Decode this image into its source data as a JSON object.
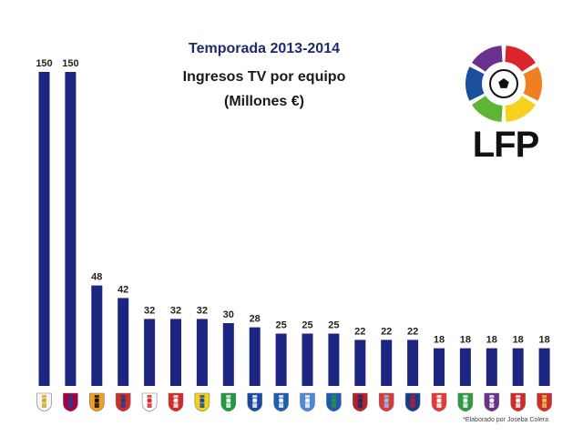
{
  "title": "Temporada 2013-2014",
  "subtitle_line1": "Ingresos TV por equipo",
  "subtitle_line2": "(Millones €)",
  "logo_text": "LFP",
  "credit": "*Elaborado por Joseba Colera",
  "colors": {
    "bar": "#1c2580",
    "title": "#1f2a6b",
    "logo_segments": [
      "#d9262b",
      "#f07f22",
      "#f6d21e",
      "#5db535",
      "#1a4f9c",
      "#6a2f8f"
    ]
  },
  "chart_data": {
    "type": "bar",
    "categories": [
      "",
      "",
      "",
      "",
      "",
      "",
      "",
      "",
      "",
      "",
      "",
      "",
      "",
      "",
      "",
      "",
      "",
      "",
      "",
      ""
    ],
    "values": [
      150,
      150,
      48,
      42,
      32,
      32,
      32,
      30,
      28,
      25,
      25,
      25,
      22,
      22,
      22,
      18,
      18,
      18,
      18,
      18
    ],
    "value_labels": [
      "150",
      "150",
      "48",
      "42",
      "32",
      "32",
      "32",
      "30",
      "28",
      "25",
      "25",
      "25",
      "22",
      "22",
      "22",
      "18",
      "18",
      "18",
      "18",
      "18"
    ],
    "title": "Temporada 2013-2014",
    "xlabel": "",
    "ylabel": "",
    "ylim": [
      0,
      150
    ],
    "grid": false,
    "legend": "none",
    "category_icons": [
      {
        "name": "real-madrid-crest-icon",
        "c1": "#f5f5f5",
        "c2": "#d4a72c"
      },
      {
        "name": "barcelona-crest-icon",
        "c1": "#a50044",
        "c2": "#1d3f8f"
      },
      {
        "name": "valencia-crest-icon",
        "c1": "#f0a020",
        "c2": "#111111"
      },
      {
        "name": "atletico-crest-icon",
        "c1": "#cf2e2e",
        "c2": "#1b3c8c"
      },
      {
        "name": "sevilla-crest-icon",
        "c1": "#ffffff",
        "c2": "#d22b2b"
      },
      {
        "name": "athletic-crest-icon",
        "c1": "#d22b2b",
        "c2": "#f5f5f5"
      },
      {
        "name": "villarreal-crest-icon",
        "c1": "#f2d21a",
        "c2": "#1b4a99"
      },
      {
        "name": "betis-crest-icon",
        "c1": "#1f9a3f",
        "c2": "#f5f5f5"
      },
      {
        "name": "real-sociedad-crest-icon",
        "c1": "#1a4aa0",
        "c2": "#f5f5f5"
      },
      {
        "name": "espanyol-crest-icon",
        "c1": "#1b5fb0",
        "c2": "#f5f5f5"
      },
      {
        "name": "malaga-crest-icon",
        "c1": "#4a8ad6",
        "c2": "#f5f5f5"
      },
      {
        "name": "getafe-crest-icon",
        "c1": "#1a5ab0",
        "c2": "#2f8f3f"
      },
      {
        "name": "osasuna-crest-icon",
        "c1": "#b81f2a",
        "c2": "#1a2a6a"
      },
      {
        "name": "celta-crest-icon",
        "c1": "#d93a3a",
        "c2": "#8cc4ec"
      },
      {
        "name": "levante-crest-icon",
        "c1": "#1a3a8a",
        "c2": "#b81f2a"
      },
      {
        "name": "granada-crest-icon",
        "c1": "#e23a3a",
        "c2": "#ffffff"
      },
      {
        "name": "elche-crest-icon",
        "c1": "#2f9a3f",
        "c2": "#f5f5f5"
      },
      {
        "name": "valladolid-crest-icon",
        "c1": "#6a2f8f",
        "c2": "#f5f5f5"
      },
      {
        "name": "rayo-crest-icon",
        "c1": "#d22b2b",
        "c2": "#f5f5f5"
      },
      {
        "name": "almeria-crest-icon",
        "c1": "#d22b2b",
        "c2": "#e8c04a"
      }
    ]
  }
}
